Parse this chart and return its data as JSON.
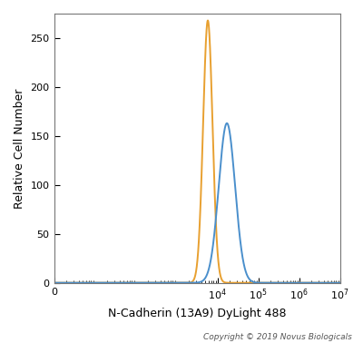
{
  "orange_peak_x": 5800,
  "orange_peak_y": 268,
  "orange_sigma": 0.115,
  "blue_peak_x": 17000,
  "blue_peak_y": 163,
  "blue_sigma": 0.2,
  "orange_color": "#E8A030",
  "blue_color": "#4A8FCC",
  "xlabel": "N-Cadherin (13A9) DyLight 488",
  "ylabel": "Relative Cell Number",
  "ylim": [
    0,
    275
  ],
  "yticks": [
    0,
    50,
    100,
    150,
    200,
    250
  ],
  "xticks": [
    1,
    10000,
    100000,
    1000000,
    10000000
  ],
  "xticklabels": [
    "0",
    "$10^4$",
    "$10^5$",
    "$10^6$",
    "$10^7$"
  ],
  "copyright_text": "Copyright © 2019 Novus Biologicals",
  "bg_color": "#FFFFFF",
  "linewidth": 1.4,
  "figsize": [
    4.0,
    3.78
  ],
  "dpi": 100
}
